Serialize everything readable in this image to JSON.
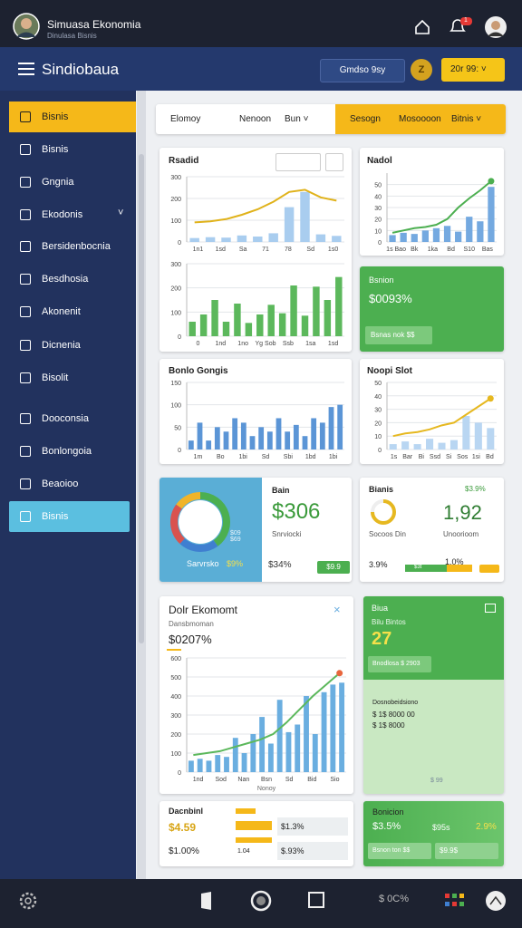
{
  "status_bar": {
    "title": "Simuasa Ekonomia",
    "subtitle": "Dinulasa Bisnis",
    "badge": "1"
  },
  "header": {
    "title": "Sindiobaua",
    "button": "Gmdso 9sy",
    "coin": "Z",
    "balance": "20r 99:"
  },
  "sidebar": [
    "Bisnis",
    "Bisnis",
    "Gngnia",
    "Ekodonis",
    "Bersidenbocnia",
    "Besdhosia",
    "Akonenit",
    "Dicnenia",
    "Bisolit",
    "Dooconsia",
    "Bonlongoia",
    "Beaoioo",
    "Bisnis"
  ],
  "filter": {
    "left": [
      "Elomoy",
      "Nenoon",
      "Bun"
    ],
    "right": [
      "Sesogn",
      "Mosoooon",
      "Bitnis"
    ]
  },
  "cards": {
    "revenue": {
      "title": "Rsadid"
    },
    "nadol": {
      "title": "Nadol"
    },
    "green_a": {
      "title": "Bsnion",
      "value": "$0093%",
      "button": "Bsnas nok $$"
    },
    "bonlo": {
      "title": "Bonlo Gongis"
    },
    "noopi": {
      "title": "Noopi Slot"
    },
    "balance": {
      "panel_label": "Sarvrsko",
      "panel_value": "$9%",
      "donut_note": "$09 $69",
      "title": "Bain",
      "value": "$306",
      "caption": "Snrviocki",
      "change": "$34%",
      "pill": "$9.9"
    },
    "stats": {
      "title": "Bianis",
      "badge": "$3.9%",
      "value": "1,92",
      "left_caption": "Socoos Din",
      "right_caption": "Unoorioom",
      "left_pct": "3.9%",
      "bar_label": "$3t",
      "right_pct": "1.0%"
    },
    "economy": {
      "title": "Dolr Ekomomt",
      "subtitle": "Dansbmoman",
      "value": "$0207%"
    },
    "green_b": {
      "title": "Biua",
      "subtitle": "Bilu Bintos",
      "value": "27",
      "button": "Bnodlosa $ 2903",
      "list_title": "Dosnobeidsiono",
      "rows": [
        "$ 1$ 8000 00",
        "$ 1$ 8000"
      ],
      "foot": "$ 99"
    },
    "summary": {
      "title": "Dacnbinl",
      "value": "$4.59",
      "value2": "$1.00%",
      "bar1": "$1.3%",
      "bar2": "$.93%",
      "small": "1.04"
    },
    "green_c": {
      "title": "Bonicion",
      "value": "$3.5%",
      "value_mid": "$95s",
      "value_right": "2.9%",
      "button1": "Bsnon ton $$",
      "button2": "$9.9$"
    }
  },
  "charts": {
    "revenue_top": {
      "ylim": [
        0,
        300
      ],
      "yticks": [
        0,
        100,
        200,
        300
      ],
      "xlabels": [
        "1n1",
        "1sd",
        "Sa",
        "71",
        "78",
        "Sd",
        "1s0"
      ],
      "bars": [
        18,
        22,
        20,
        30,
        25,
        40,
        160,
        230,
        35,
        28
      ],
      "bar_color": "#a9cdef",
      "line": [
        90,
        95,
        105,
        125,
        150,
        185,
        230,
        240,
        205,
        190
      ],
      "line_color": "#e0b21a"
    },
    "revenue_bottom": {
      "ylim": [
        0,
        300
      ],
      "yticks": [
        0,
        100,
        200,
        300
      ],
      "xlabels": [
        "0",
        "1nd",
        "1no",
        "Yg Sob",
        "Ssb",
        "1sa",
        "1sd"
      ],
      "bars": [
        60,
        90,
        150,
        60,
        135,
        55,
        90,
        130,
        95,
        210,
        85,
        205,
        150,
        245
      ],
      "bar_color": "#5cb85c"
    },
    "nadol": {
      "ylim": [
        0,
        60
      ],
      "yticks": [
        0,
        10,
        20,
        30,
        40,
        50
      ],
      "xlabels": [
        "1s Bao",
        "Bk",
        "1ka",
        "Bd",
        "S10",
        "Bas"
      ],
      "bars": [
        6,
        8,
        7,
        10,
        12,
        14,
        9,
        22,
        18,
        48
      ],
      "bar_color": "#74a9e0",
      "line": [
        8,
        10,
        12,
        13,
        15,
        20,
        30,
        38,
        45,
        53
      ],
      "line_color": "#4caf50",
      "end_dot": "#4caf50"
    },
    "bonlo": {
      "ylim": [
        0,
        150
      ],
      "yticks": [
        0,
        50,
        100,
        150
      ],
      "xlabels": [
        "1m",
        "Bo",
        "1bi",
        "Sd",
        "Sbi",
        "1bd",
        "1bi"
      ],
      "bars": [
        20,
        60,
        20,
        50,
        40,
        70,
        60,
        30,
        50,
        40,
        70,
        40,
        55,
        30,
        70,
        60,
        95,
        100
      ],
      "bar_color": "#5b95d6"
    },
    "noopi": {
      "ylim": [
        0,
        50
      ],
      "yticks": [
        0,
        10,
        20,
        30,
        40,
        50
      ],
      "xlabels": [
        "1s",
        "Bar",
        "Bi",
        "Ssd",
        "Si",
        "Sos",
        "1si",
        "Bd"
      ],
      "bars": [
        4,
        6,
        4,
        8,
        5,
        7,
        25,
        20,
        16
      ],
      "bar_color": "#b9d6f2",
      "line": [
        10,
        12,
        13,
        15,
        18,
        20,
        26,
        32,
        38
      ],
      "line_color": "#e6b820",
      "end_dot": "#e6b820"
    },
    "economy": {
      "ylim": [
        0,
        600
      ],
      "yticks": [
        0,
        100,
        200,
        300,
        400,
        500,
        600
      ],
      "xlabels": [
        "1nd",
        "Sod",
        "Nan",
        "Bsn",
        "Sd",
        "Bid",
        "Sio"
      ],
      "x_title": "Nonoy",
      "bars": [
        60,
        70,
        60,
        90,
        80,
        180,
        100,
        200,
        290,
        150,
        380,
        210,
        250,
        400,
        200,
        420,
        460,
        470
      ],
      "bar_color": "#6aaee0",
      "line": [
        90,
        100,
        110,
        130,
        150,
        170,
        200,
        260,
        330,
        400,
        460,
        520
      ],
      "line_color": "#5cb85c",
      "end_dot": "#e8663d"
    }
  },
  "donut": {
    "values": [
      40,
      22,
      23,
      15
    ],
    "colors": [
      "#4caf50",
      "#3f7fd0",
      "#d9534f",
      "#f0b429"
    ]
  },
  "gauge": {
    "value": 75,
    "max": 100,
    "color": "#e6b820"
  },
  "bottom_nav": {
    "status": "$ 0C%"
  }
}
